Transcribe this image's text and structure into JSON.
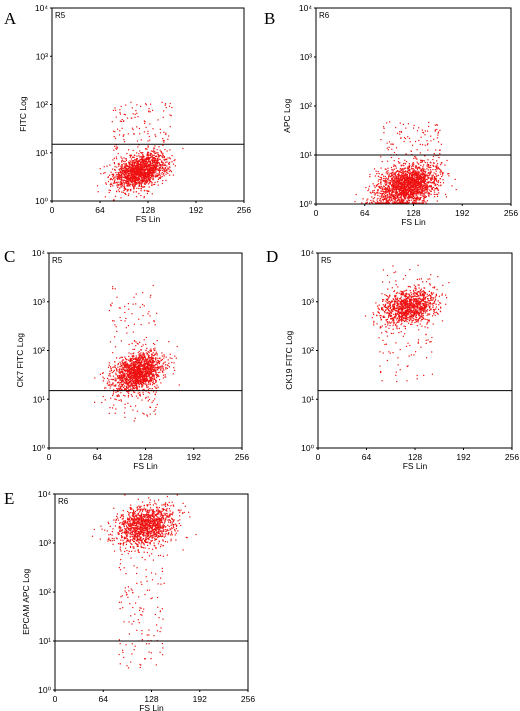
{
  "colors": {
    "dots": "#ee1111",
    "frame": "#000000",
    "background": "#ffffff"
  },
  "chart_data": [
    {
      "panel": "A",
      "type": "scatter",
      "gate": "R5",
      "xlabel": "FS Lin",
      "ylabel": "FITC Log",
      "xlim": [
        0,
        256
      ],
      "ylim": [
        1,
        10000
      ],
      "yscale": "log",
      "x_ticks": [
        "0",
        "64",
        "128",
        "192",
        "256"
      ],
      "y_ticks": [
        "10⁰",
        "10¹",
        "10²",
        "10³",
        "10⁴"
      ],
      "gate_threshold": 15,
      "population": {
        "x_mean": 118,
        "x_sd": 18,
        "log_y_mean": 0.62,
        "log_y_sd": 0.17,
        "slope": 0.004,
        "n": 1600
      },
      "sparse": {
        "x_range": [
          80,
          160
        ],
        "log_y_range": [
          0.85,
          2.05
        ],
        "n": 130
      }
    },
    {
      "panel": "B",
      "type": "scatter",
      "gate": "R6",
      "xlabel": "FS Lin",
      "ylabel": "APC Log",
      "xlim": [
        0,
        256
      ],
      "ylim": [
        1,
        10000
      ],
      "yscale": "log",
      "x_ticks": [
        "0",
        "64",
        "128",
        "192",
        "256"
      ],
      "y_ticks": [
        "10⁰",
        "10¹",
        "10²",
        "10³",
        "10⁴"
      ],
      "gate_threshold": 10,
      "population": {
        "x_mean": 120,
        "x_sd": 20,
        "log_y_mean": 0.38,
        "log_y_sd": 0.2,
        "slope": 0.003,
        "n": 1900
      },
      "sparse": {
        "x_range": [
          85,
          165
        ],
        "log_y_range": [
          0.7,
          1.7
        ],
        "n": 110
      }
    },
    {
      "panel": "C",
      "type": "scatter",
      "gate": "R5",
      "xlabel": "FS Lin",
      "ylabel": "CK7 FITC Log",
      "xlim": [
        0,
        256
      ],
      "ylim": [
        1,
        10000
      ],
      "yscale": "log",
      "x_ticks": [
        "0",
        "64",
        "128",
        "192",
        "256"
      ],
      "y_ticks": [
        "10⁰",
        "10¹",
        "10²",
        "10³",
        "10⁴"
      ],
      "gate_threshold": 15,
      "population": {
        "x_mean": 118,
        "x_sd": 17,
        "log_y_mean": 1.55,
        "log_y_sd": 0.2,
        "slope": 0.004,
        "n": 1500
      },
      "sparse": {
        "x_range": [
          80,
          145
        ],
        "log_y_range": [
          0.55,
          3.35
        ],
        "n": 150
      }
    },
    {
      "panel": "D",
      "type": "scatter",
      "gate": "R5",
      "xlabel": "FS Lin",
      "ylabel": "CK19 FITC Log",
      "xlim": [
        0,
        256
      ],
      "ylim": [
        1,
        10000
      ],
      "yscale": "log",
      "x_ticks": [
        "0",
        "64",
        "128",
        "192",
        "256"
      ],
      "y_ticks": [
        "10⁰",
        "10¹",
        "10²",
        "10³",
        "10⁴"
      ],
      "gate_threshold": 15,
      "population": {
        "x_mean": 120,
        "x_sd": 18,
        "log_y_mean": 2.9,
        "log_y_sd": 0.18,
        "slope": 0.003,
        "n": 1100
      },
      "sparse": {
        "x_range": [
          80,
          155
        ],
        "log_y_range": [
          1.35,
          3.75
        ],
        "n": 110
      }
    },
    {
      "panel": "E",
      "type": "scatter",
      "gate": "R6",
      "xlabel": "FS Lin",
      "ylabel": "EPCAM APC Log",
      "xlim": [
        0,
        256
      ],
      "ylim": [
        1,
        10000
      ],
      "yscale": "log",
      "x_ticks": [
        "0",
        "64",
        "128",
        "192",
        "256"
      ],
      "y_ticks": [
        "10⁰",
        "10¹",
        "10²",
        "10³",
        "10⁴"
      ],
      "gate_threshold": 10,
      "population": {
        "x_mean": 120,
        "x_sd": 20,
        "log_y_mean": 3.35,
        "log_y_sd": 0.2,
        "slope": 0.002,
        "n": 1300
      },
      "sparse": {
        "x_range": [
          85,
          145
        ],
        "log_y_range": [
          0.45,
          2.9
        ],
        "n": 140
      }
    }
  ]
}
